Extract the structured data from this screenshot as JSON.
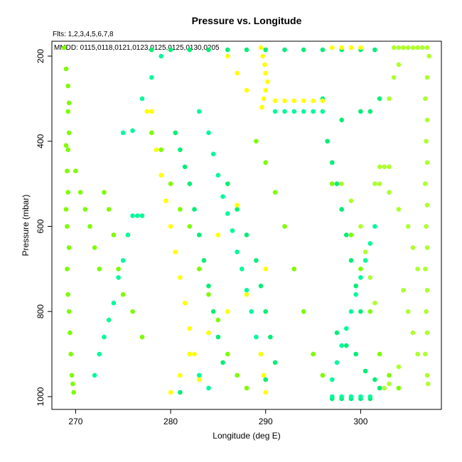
{
  "chart_data": {
    "type": "scatter",
    "title": "Pressure vs. Longitude",
    "annotations": [
      "Flts: 1,2,3,4,5,6,7,8",
      "MMDD: 0115,0118,0121,0123,0125,0125,0130,0205"
    ],
    "xlabel": "Longitude (deg E)",
    "ylabel": "Pressure (mbar)",
    "xlim": [
      267.5,
      308.5
    ],
    "ylim": [
      1030,
      165
    ],
    "y_inverted": true,
    "grid": false,
    "legend": "none",
    "x_ticks": [
      270,
      280,
      290,
      300
    ],
    "y_ticks": [
      200,
      400,
      600,
      800,
      1000
    ],
    "series": [
      {
        "color": "#7CFC00",
        "points": [
          [
            268.8,
            180
          ],
          [
            269,
            230
          ],
          [
            269.2,
            270
          ],
          [
            269.3,
            310
          ],
          [
            269.2,
            330
          ],
          [
            269.3,
            380
          ],
          [
            269,
            410
          ],
          [
            269.2,
            420
          ],
          [
            269.1,
            470
          ],
          [
            269.2,
            520
          ],
          [
            269,
            560
          ],
          [
            269.1,
            600
          ],
          [
            269.3,
            650
          ],
          [
            269.1,
            700
          ],
          [
            269.2,
            760
          ],
          [
            269.3,
            800
          ],
          [
            269.4,
            850
          ],
          [
            269.5,
            900
          ],
          [
            269.6,
            950
          ],
          [
            269.7,
            970
          ],
          [
            269.8,
            990
          ],
          [
            270,
            470
          ],
          [
            270.5,
            520
          ],
          [
            271,
            560
          ],
          [
            271.5,
            600
          ],
          [
            272,
            650
          ],
          [
            272.5,
            700
          ],
          [
            273,
            520
          ],
          [
            273.5,
            560
          ],
          [
            274,
            620
          ],
          [
            274.5,
            700
          ],
          [
            275,
            760
          ],
          [
            276,
            800
          ],
          [
            277,
            860
          ],
          [
            278,
            380
          ],
          [
            279,
            420
          ],
          [
            280,
            500
          ],
          [
            281,
            560
          ],
          [
            282,
            600
          ],
          [
            283,
            700
          ],
          [
            284,
            760
          ],
          [
            285,
            820
          ],
          [
            286,
            900
          ],
          [
            287,
            950
          ],
          [
            288,
            980
          ],
          [
            289,
            400
          ],
          [
            290,
            450
          ],
          [
            291,
            520
          ],
          [
            292,
            600
          ],
          [
            293,
            700
          ],
          [
            294,
            800
          ],
          [
            295,
            900
          ],
          [
            296,
            950
          ],
          [
            297,
            500
          ],
          [
            298,
            560
          ],
          [
            299,
            620
          ],
          [
            300,
            700
          ],
          [
            301,
            800
          ],
          [
            302,
            900
          ],
          [
            303,
            950
          ],
          [
            304,
            980
          ]
        ]
      },
      {
        "color": "#00EE76",
        "points": [
          [
            278,
            185
          ],
          [
            280,
            185
          ],
          [
            282,
            185
          ],
          [
            284,
            185
          ],
          [
            286,
            185
          ],
          [
            288,
            185
          ],
          [
            290,
            185
          ],
          [
            292,
            185
          ],
          [
            294,
            185
          ],
          [
            296,
            185
          ],
          [
            298,
            185
          ],
          [
            300,
            185
          ],
          [
            301.5,
            185
          ],
          [
            280.5,
            380
          ],
          [
            281,
            420
          ],
          [
            281.5,
            460
          ],
          [
            282,
            500
          ],
          [
            282.5,
            560
          ],
          [
            283,
            620
          ],
          [
            283.5,
            680
          ],
          [
            284,
            740
          ],
          [
            284.5,
            800
          ],
          [
            285,
            860
          ],
          [
            285.5,
            920
          ],
          [
            281,
            990
          ],
          [
            286,
            500
          ],
          [
            287,
            560
          ],
          [
            288,
            620
          ],
          [
            289,
            680
          ],
          [
            289.5,
            740
          ],
          [
            290,
            800
          ],
          [
            290.5,
            860
          ],
          [
            291,
            920
          ],
          [
            290,
            960
          ],
          [
            297,
            1005
          ],
          [
            298,
            1005
          ],
          [
            299,
            1005
          ],
          [
            300,
            1005
          ],
          [
            301,
            1005
          ],
          [
            297.5,
            850
          ],
          [
            298.5,
            880
          ],
          [
            299.5,
            900
          ],
          [
            300.5,
            940
          ],
          [
            301.5,
            960
          ],
          [
            302,
            980
          ],
          [
            296.5,
            400
          ],
          [
            297,
            450
          ],
          [
            297.5,
            500
          ],
          [
            298,
            560
          ],
          [
            298.5,
            620
          ],
          [
            299,
            680
          ],
          [
            299.5,
            740
          ],
          [
            300,
            800
          ],
          [
            296,
            300
          ],
          [
            298,
            350
          ],
          [
            300,
            330
          ],
          [
            301,
            330
          ],
          [
            302,
            300
          ]
        ]
      },
      {
        "color": "#00FA9A",
        "points": [
          [
            272,
            950
          ],
          [
            272.5,
            900
          ],
          [
            273,
            860
          ],
          [
            273.5,
            820
          ],
          [
            274,
            780
          ],
          [
            274.5,
            720
          ],
          [
            275,
            680
          ],
          [
            275.5,
            620
          ],
          [
            276,
            575
          ],
          [
            276.5,
            575
          ],
          [
            277,
            575
          ],
          [
            275,
            380
          ],
          [
            276,
            375
          ],
          [
            277,
            300
          ],
          [
            278,
            250
          ],
          [
            279,
            200
          ],
          [
            283,
            330
          ],
          [
            284,
            380
          ],
          [
            284.5,
            430
          ],
          [
            285,
            480
          ],
          [
            285.5,
            530
          ],
          [
            286,
            570
          ],
          [
            286.5,
            610
          ],
          [
            287,
            660
          ],
          [
            287.5,
            700
          ],
          [
            288,
            750
          ],
          [
            288.5,
            800
          ],
          [
            289,
            860
          ],
          [
            289.5,
            900
          ],
          [
            291,
            330
          ],
          [
            292,
            330
          ],
          [
            293,
            330
          ],
          [
            294,
            330
          ],
          [
            295,
            330
          ],
          [
            296,
            330
          ],
          [
            297,
            960
          ],
          [
            297.5,
            920
          ],
          [
            298,
            880
          ],
          [
            298.5,
            840
          ],
          [
            299,
            800
          ],
          [
            299.5,
            760
          ],
          [
            300,
            720
          ],
          [
            300.5,
            680
          ],
          [
            301,
            640
          ],
          [
            301.5,
            600
          ],
          [
            297,
            1000
          ],
          [
            298,
            1000
          ],
          [
            299,
            1000
          ],
          [
            300,
            1000
          ],
          [
            301,
            1000
          ],
          [
            282,
            900
          ],
          [
            283,
            950
          ],
          [
            284,
            980
          ]
        ]
      },
      {
        "color": "#FFFF00",
        "points": [
          [
            277.5,
            330
          ],
          [
            278,
            330
          ],
          [
            278.5,
            420
          ],
          [
            279,
            480
          ],
          [
            279.5,
            540
          ],
          [
            280,
            600
          ],
          [
            280.5,
            660
          ],
          [
            281,
            720
          ],
          [
            281.5,
            780
          ],
          [
            282,
            840
          ],
          [
            282.5,
            900
          ],
          [
            283,
            960
          ],
          [
            289.5,
            180
          ],
          [
            289.7,
            200
          ],
          [
            289.9,
            220
          ],
          [
            290,
            240
          ],
          [
            290.2,
            260
          ],
          [
            290,
            280
          ],
          [
            289.8,
            300
          ],
          [
            289.6,
            320
          ],
          [
            289.5,
            900
          ],
          [
            289.8,
            950
          ],
          [
            290,
            990
          ],
          [
            291,
            305
          ],
          [
            292,
            305
          ],
          [
            293,
            305
          ],
          [
            294,
            305
          ],
          [
            295,
            305
          ],
          [
            296,
            305
          ],
          [
            297,
            180
          ],
          [
            298,
            180
          ],
          [
            299,
            180
          ],
          [
            300,
            180
          ],
          [
            286,
            200
          ],
          [
            287,
            240
          ],
          [
            288,
            280
          ],
          [
            280,
            990
          ],
          [
            281,
            950
          ],
          [
            282,
            900
          ],
          [
            284,
            850
          ],
          [
            286,
            800
          ],
          [
            288,
            760
          ],
          [
            290,
            700
          ],
          [
            285,
            620
          ],
          [
            287,
            550
          ]
        ]
      },
      {
        "color": "#ADFF2F",
        "points": [
          [
            303.5,
            180
          ],
          [
            304,
            180
          ],
          [
            304.5,
            180
          ],
          [
            305,
            180
          ],
          [
            305.5,
            180
          ],
          [
            306,
            180
          ],
          [
            306.5,
            180
          ],
          [
            307,
            180
          ],
          [
            307.2,
            200
          ],
          [
            307,
            250
          ],
          [
            306.8,
            300
          ],
          [
            307,
            350
          ],
          [
            306.9,
            400
          ],
          [
            307,
            450
          ],
          [
            306.8,
            500
          ],
          [
            307,
            550
          ],
          [
            306.9,
            600
          ],
          [
            307,
            650
          ],
          [
            306.8,
            700
          ],
          [
            307,
            750
          ],
          [
            306.9,
            800
          ],
          [
            307,
            850
          ],
          [
            306.8,
            900
          ],
          [
            307,
            950
          ],
          [
            307.1,
            970
          ],
          [
            303,
            300
          ],
          [
            303.5,
            250
          ],
          [
            304,
            220
          ],
          [
            302,
            460
          ],
          [
            302.5,
            460
          ],
          [
            303,
            460
          ],
          [
            301.5,
            500
          ],
          [
            302,
            500
          ],
          [
            303,
            520
          ],
          [
            304,
            560
          ],
          [
            305,
            600
          ],
          [
            305.5,
            650
          ],
          [
            306,
            700
          ],
          [
            304.5,
            750
          ],
          [
            305,
            800
          ],
          [
            305.5,
            850
          ],
          [
            306,
            900
          ],
          [
            304,
            930
          ],
          [
            303,
            970
          ],
          [
            302.5,
            980
          ],
          [
            298,
            500
          ],
          [
            299,
            540
          ],
          [
            300,
            600
          ],
          [
            300.5,
            660
          ],
          [
            301,
            720
          ],
          [
            301.5,
            780
          ]
        ]
      }
    ]
  }
}
